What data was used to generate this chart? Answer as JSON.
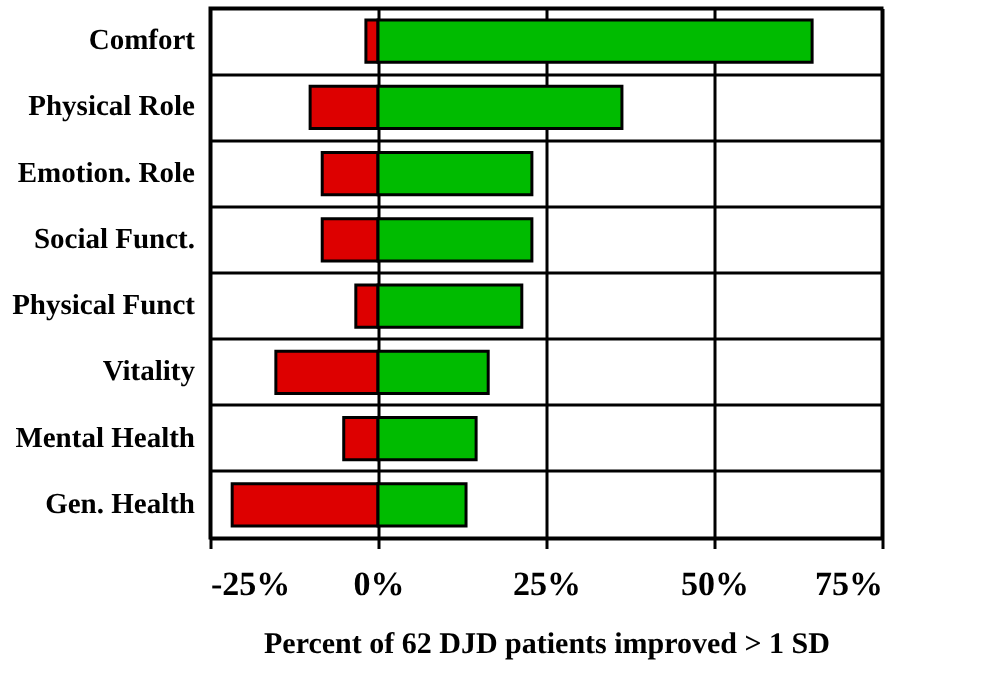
{
  "chart_data": {
    "type": "bar",
    "orientation": "horizontal",
    "stacked": true,
    "categories": [
      "Comfort",
      "Physical Role",
      "Emotion. Role",
      "Social Funct.",
      "Physical Funct",
      "Vitality",
      "Mental Health",
      "Gen. Health"
    ],
    "series": [
      {
        "color": "#dd0000",
        "values": [
          -1.8,
          -10.1,
          -8.3,
          -8.3,
          -3.3,
          -15.2,
          -5.1,
          -21.7
        ]
      },
      {
        "color": "#00bb00",
        "values": [
          64.6,
          36.3,
          22.9,
          22.9,
          21.4,
          16.4,
          14.6,
          13.1
        ]
      }
    ],
    "xlabel": "Percent of 62 DJD patients improved > 1 SD",
    "xlim": [
      -25,
      75
    ],
    "xticks": [
      {
        "value": -25,
        "label": "-25%"
      },
      {
        "value": 0,
        "label": "0%"
      },
      {
        "value": 25,
        "label": "25%"
      },
      {
        "value": 50,
        "label": "50%"
      },
      {
        "value": 75,
        "label": "75%"
      }
    ],
    "grid": true
  }
}
